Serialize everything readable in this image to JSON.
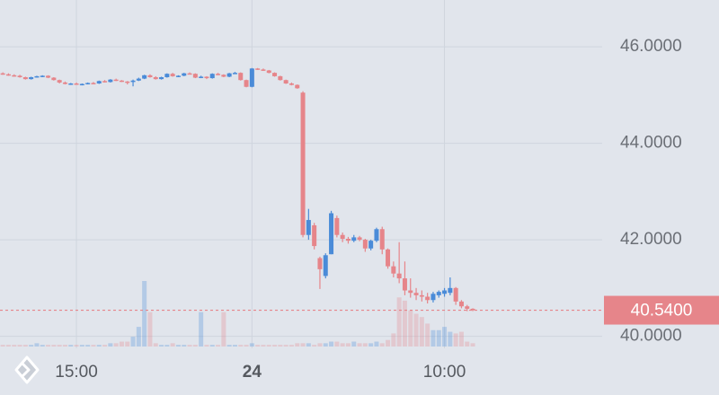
{
  "chart_data": {
    "type": "candlestick",
    "categories": [
      null,
      null,
      null,
      null,
      null,
      null,
      null,
      null,
      null,
      null,
      null,
      null,
      null,
      "15:00",
      null,
      null,
      null,
      null,
      null,
      null,
      null,
      null,
      null,
      null,
      null,
      null,
      null,
      null,
      null,
      null,
      null,
      null,
      null,
      null,
      null,
      null,
      null,
      null,
      null,
      null,
      null,
      null,
      null,
      null,
      "24",
      null,
      null,
      null,
      null,
      null,
      null,
      null,
      null,
      null,
      null,
      null,
      null,
      null,
      null,
      null,
      null,
      null,
      null,
      null,
      null,
      null,
      null,
      null,
      null,
      null,
      null,
      null,
      null,
      null,
      null,
      null,
      null,
      null,
      "10:00",
      null,
      null,
      null,
      null,
      null
    ],
    "open": [
      45.45,
      45.43,
      45.41,
      45.4,
      45.37,
      45.33,
      45.37,
      45.39,
      45.4,
      45.36,
      45.31,
      45.26,
      45.23,
      45.24,
      45.22,
      45.23,
      45.25,
      45.24,
      45.29,
      45.27,
      45.32,
      45.3,
      45.28,
      45.27,
      45.3,
      45.34,
      45.41,
      45.37,
      45.33,
      45.37,
      45.44,
      45.39,
      45.4,
      45.45,
      45.44,
      45.36,
      45.38,
      45.35,
      45.44,
      45.42,
      45.38,
      45.45,
      45.46,
      45.31,
      45.17,
      45.55,
      45.53,
      45.51,
      45.46,
      45.39,
      45.31,
      45.24,
      45.21,
      45.05,
      42.1,
      42.3,
      41.62,
      41.25,
      41.7,
      42.45,
      42.1,
      42.02,
      41.98,
      42.05,
      42.0,
      41.82,
      41.98,
      42.22,
      41.8,
      41.45,
      41.3,
      41.2,
      40.95,
      40.9,
      40.85,
      40.82,
      40.75,
      40.85,
      40.88,
      40.9,
      41.0,
      40.72,
      40.62,
      40.57
    ],
    "high": [
      45.47,
      45.45,
      45.43,
      45.42,
      45.38,
      45.38,
      45.4,
      45.41,
      45.41,
      45.37,
      45.32,
      45.28,
      45.25,
      45.26,
      45.24,
      45.26,
      45.27,
      45.3,
      45.31,
      45.33,
      45.34,
      45.31,
      45.29,
      45.32,
      45.36,
      45.42,
      45.43,
      45.39,
      45.38,
      45.45,
      45.46,
      45.41,
      45.46,
      45.47,
      45.45,
      45.4,
      45.39,
      45.45,
      45.46,
      45.43,
      45.46,
      45.48,
      45.47,
      45.32,
      45.56,
      45.56,
      45.55,
      45.52,
      45.47,
      45.4,
      45.32,
      45.26,
      45.22,
      45.08,
      42.64,
      42.35,
      41.65,
      41.72,
      42.6,
      42.5,
      42.15,
      42.06,
      42.1,
      42.08,
      42.02,
      42.0,
      42.25,
      42.27,
      41.82,
      41.55,
      41.95,
      41.55,
      41.2,
      41.0,
      40.95,
      40.9,
      40.92,
      40.95,
      41.0,
      41.22,
      41.02,
      40.75,
      40.65,
      40.58
    ],
    "low": [
      45.42,
      45.4,
      45.38,
      45.36,
      45.32,
      45.32,
      45.36,
      45.37,
      45.35,
      45.3,
      45.24,
      45.22,
      45.21,
      45.21,
      45.2,
      45.22,
      45.23,
      45.23,
      45.26,
      45.26,
      45.29,
      45.27,
      45.22,
      45.18,
      45.29,
      45.33,
      45.36,
      45.32,
      45.32,
      45.36,
      45.38,
      45.37,
      45.39,
      45.43,
      45.35,
      45.35,
      45.33,
      45.34,
      45.41,
      45.37,
      45.37,
      45.44,
      45.3,
      45.16,
      45.16,
      45.52,
      45.5,
      45.45,
      45.38,
      45.3,
      45.23,
      45.2,
      45.13,
      42.05,
      42.0,
      41.8,
      40.98,
      41.2,
      41.7,
      42.05,
      41.95,
      41.92,
      41.95,
      41.97,
      41.75,
      41.78,
      41.95,
      41.7,
      41.4,
      41.22,
      41.1,
      40.85,
      40.8,
      40.75,
      40.72,
      40.68,
      40.7,
      40.8,
      40.82,
      40.85,
      40.65,
      40.58,
      40.52,
      40.52
    ],
    "close": [
      45.43,
      45.41,
      45.4,
      45.37,
      45.33,
      45.37,
      45.39,
      45.4,
      45.36,
      45.31,
      45.26,
      45.23,
      45.24,
      45.22,
      45.23,
      45.25,
      45.24,
      45.29,
      45.27,
      45.32,
      45.3,
      45.28,
      45.27,
      45.3,
      45.34,
      45.41,
      45.37,
      45.33,
      45.37,
      45.44,
      45.39,
      45.4,
      45.45,
      45.44,
      45.36,
      45.38,
      45.35,
      45.44,
      45.42,
      45.38,
      45.45,
      45.46,
      45.31,
      45.17,
      45.55,
      45.53,
      45.51,
      45.46,
      45.39,
      45.31,
      45.24,
      45.21,
      45.14,
      42.1,
      42.41,
      41.87,
      41.39,
      41.68,
      42.55,
      42.1,
      42.02,
      41.98,
      42.05,
      42.0,
      41.82,
      41.98,
      42.22,
      41.8,
      41.45,
      41.3,
      41.2,
      40.95,
      40.9,
      40.85,
      40.82,
      40.75,
      40.88,
      40.92,
      40.95,
      41.0,
      40.72,
      40.62,
      40.57,
      40.54
    ],
    "volume": [
      1,
      1,
      1,
      1,
      1,
      1,
      2,
      1,
      1,
      1,
      1,
      1,
      1,
      1,
      1,
      1,
      1,
      1,
      1,
      2,
      2,
      3,
      3,
      6,
      12,
      40,
      21,
      2,
      1,
      1,
      2,
      1,
      1,
      1,
      1,
      21,
      1,
      1,
      1,
      21,
      1,
      1,
      1,
      1,
      2,
      1,
      1,
      1,
      1,
      1,
      1,
      1,
      2,
      2,
      2,
      1,
      2,
      2,
      3,
      3,
      2,
      2,
      3,
      2,
      2,
      2,
      3,
      2,
      4,
      8,
      30,
      28,
      22,
      20,
      18,
      14,
      10,
      10,
      12,
      9,
      8,
      9,
      3,
      2
    ],
    "up_color": "#4a8bd8",
    "down_color": "#e6858a",
    "ylim": [
      39.75,
      46.97
    ],
    "yticks": [
      {
        "value": 40,
        "label": "40.0000"
      },
      {
        "value": 42,
        "label": "42.0000"
      },
      {
        "value": 44,
        "label": "44.0000"
      },
      {
        "value": 46,
        "label": "46.0000"
      }
    ],
    "last_price": {
      "value": 40.54,
      "label": "40.5400"
    },
    "grid": true
  }
}
